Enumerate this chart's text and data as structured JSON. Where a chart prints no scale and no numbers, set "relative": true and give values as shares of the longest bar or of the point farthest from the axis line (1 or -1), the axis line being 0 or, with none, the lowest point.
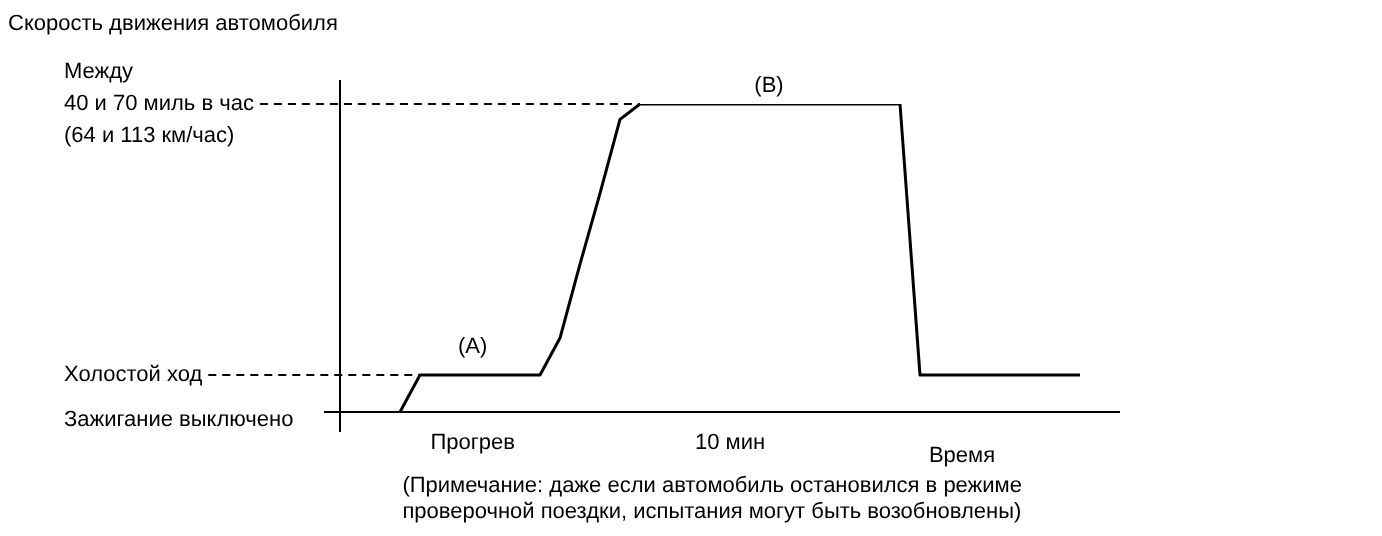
{
  "chart_data": {
    "type": "line",
    "relative": true,
    "title": "Скорость движения автомобиля",
    "xlabel": "Время",
    "categories": [
      null,
      null,
      null,
      null,
      null,
      null,
      null,
      null,
      null,
      null,
      null,
      null,
      null,
      null,
      null,
      null,
      null,
      null,
      null,
      null,
      null,
      null,
      null,
      null,
      null,
      null,
      null,
      null,
      null,
      null,
      null,
      null,
      null,
      null,
      null,
      null,
      null,
      null,
      null,
      null
    ],
    "series": [
      {
        "color": "#000000",
        "values": [
          null,
          null,
          null,
          0,
          0.12,
          0.12,
          0.12,
          0.12,
          0.12,
          0.12,
          0.12,
          0.24,
          0.48,
          0.71,
          0.95,
          1,
          1,
          1,
          1,
          1,
          1,
          1,
          1,
          1,
          1,
          1,
          1,
          1,
          1,
          0.12,
          0.12,
          0.12,
          0.12,
          0.12,
          0.12,
          0.12,
          0.12,
          0.12,
          null,
          null
        ]
      }
    ],
    "ref_lines": [
      {
        "axis": "y",
        "value": 1,
        "label": "Между\n40 и 70 миль в час\n(64 и 113 км/час)",
        "line_style": "dashed"
      },
      {
        "axis": "y",
        "value": 0.12,
        "label": "Холостой ход",
        "line_style": "dashed"
      },
      {
        "axis": "y",
        "value": 0,
        "label": "Зажигание выключено",
        "line_style": "solid"
      }
    ],
    "annotations": [
      "(A)",
      "(B)",
      "Прогрев",
      "10 мин",
      "(Примечание: даже если автомобиль остановился в режиме\nпроверочной поездки, испытания могут быть возобновлены)"
    ],
    "legend": false,
    "marker": "none",
    "line_style": "solid"
  }
}
